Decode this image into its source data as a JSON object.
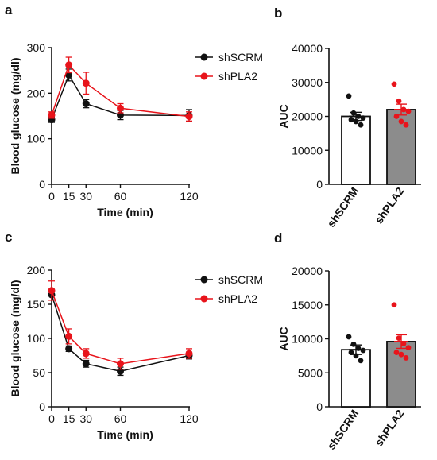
{
  "colors": {
    "black": "#111111",
    "red": "#e8141b",
    "gray_bar": "#8c8c8c",
    "white_bar": "#ffffff"
  },
  "chart_data": [
    {
      "panel": "a",
      "type": "line",
      "xlabel": "Time (min)",
      "ylabel": "Blood glucose (mg/dl)",
      "xlim": [
        0,
        120
      ],
      "ylim": [
        0,
        300
      ],
      "xticks": [
        "0",
        "15",
        "30",
        "60",
        "120"
      ],
      "yticks": [
        "0",
        "100",
        "200",
        "300"
      ],
      "legend_position": "top-right",
      "x": [
        0,
        15,
        30,
        60,
        120
      ],
      "series": [
        {
          "name": "shSCRM",
          "color": "#111111",
          "values": [
            142,
            240,
            177,
            152,
            151
          ],
          "errors": [
            6,
            13,
            9,
            10,
            13
          ]
        },
        {
          "name": "shPLA2",
          "color": "#e8141b",
          "values": [
            152,
            262,
            222,
            167,
            149
          ],
          "errors": [
            7,
            17,
            24,
            10,
            10
          ]
        }
      ]
    },
    {
      "panel": "b",
      "type": "bar",
      "ylabel": "AUC",
      "ylim": [
        0,
        40000
      ],
      "yticks": [
        "0",
        "10000",
        "20000",
        "30000",
        "40000"
      ],
      "categories": [
        "shSCRM",
        "shPLA2"
      ],
      "values": [
        20000,
        22000
      ],
      "errors": [
        1200,
        1600
      ],
      "bar_colors": [
        "#ffffff",
        "#8c8c8c"
      ],
      "point_colors": [
        "#111111",
        "#e8141b"
      ],
      "points": [
        [
          26000,
          21000,
          20000,
          19500,
          19000,
          18500,
          17500
        ],
        [
          29500,
          24500,
          22000,
          21500,
          20000,
          18500,
          17500
        ]
      ]
    },
    {
      "panel": "c",
      "type": "line",
      "xlabel": "Time (min)",
      "ylabel": "Blood glucose (mg/dl)",
      "xlim": [
        0,
        120
      ],
      "ylim": [
        0,
        200
      ],
      "xticks": [
        "0",
        "15",
        "30",
        "60",
        "120"
      ],
      "yticks": [
        "0",
        "50",
        "100",
        "150",
        "200"
      ],
      "legend_position": "top-right",
      "x": [
        0,
        15,
        30,
        60,
        120
      ],
      "series": [
        {
          "name": "shSCRM",
          "color": "#111111",
          "values": [
            164,
            85,
            63,
            52,
            75
          ],
          "errors": [
            8,
            4,
            5,
            6,
            5
          ]
        },
        {
          "name": "shPLA2",
          "color": "#e8141b",
          "values": [
            170,
            103,
            78,
            63,
            78
          ],
          "errors": [
            14,
            11,
            7,
            8,
            7
          ]
        }
      ]
    },
    {
      "panel": "d",
      "type": "bar",
      "ylabel": "AUC",
      "ylim": [
        0,
        20000
      ],
      "yticks": [
        "0",
        "5000",
        "10000",
        "15000",
        "20000"
      ],
      "categories": [
        "shSCRM",
        "shPLA2"
      ],
      "values": [
        8400,
        9600
      ],
      "errors": [
        700,
        1000
      ],
      "bar_colors": [
        "#ffffff",
        "#8c8c8c"
      ],
      "point_colors": [
        "#111111",
        "#e8141b"
      ],
      "points": [
        [
          10300,
          9200,
          8600,
          8300,
          8000,
          7500,
          6800
        ],
        [
          15000,
          10100,
          9300,
          8700,
          8000,
          7700,
          7200
        ]
      ]
    }
  ]
}
